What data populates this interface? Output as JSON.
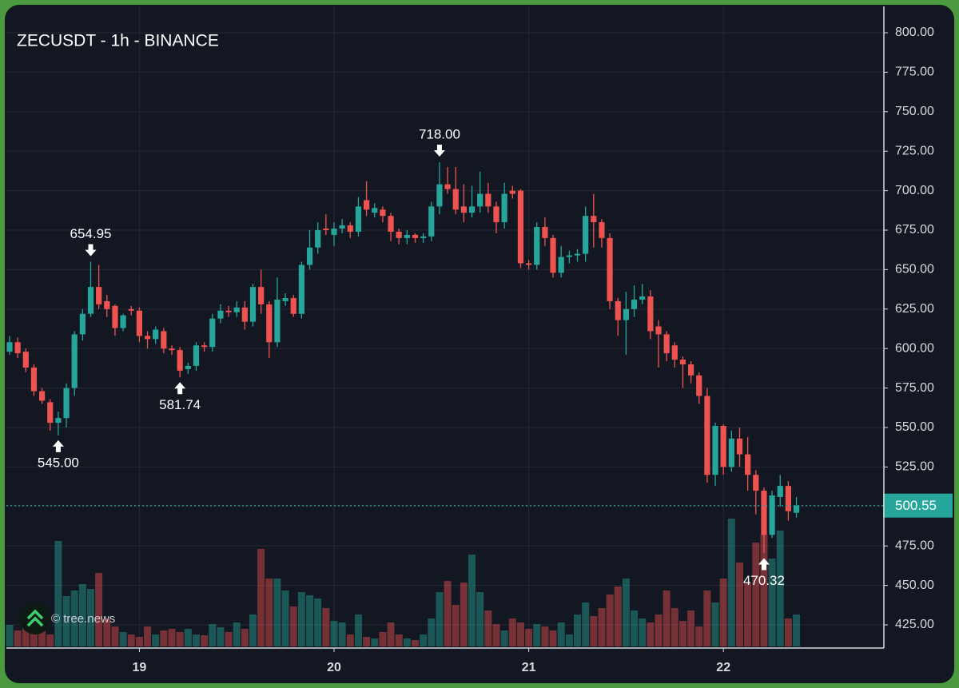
{
  "chart_data": {
    "type": "candlestick",
    "title": "ZECUSDT - 1h - BINANCE",
    "watermark": "© tree.news",
    "up_color": "#26a69a",
    "down_color": "#ef5350",
    "grid": true,
    "ylim": [
      425,
      800
    ],
    "yticks": [
      {
        "value": 425,
        "label": "425.00"
      },
      {
        "value": 450,
        "label": "450.00"
      },
      {
        "value": 475,
        "label": "475.00"
      },
      {
        "value": 500,
        "label": "500.00"
      },
      {
        "value": 525,
        "label": "525.00"
      },
      {
        "value": 550,
        "label": "550.00"
      },
      {
        "value": 575,
        "label": "575.00"
      },
      {
        "value": 600,
        "label": "600.00"
      },
      {
        "value": 625,
        "label": "625.00"
      },
      {
        "value": 650,
        "label": "650.00"
      },
      {
        "value": 675,
        "label": "675.00"
      },
      {
        "value": 700,
        "label": "700.00"
      },
      {
        "value": 725,
        "label": "725.00"
      },
      {
        "value": 750,
        "label": "750.00"
      },
      {
        "value": 775,
        "label": "775.00"
      },
      {
        "value": 800,
        "label": "800.00"
      }
    ],
    "xticks": [
      {
        "value": 16,
        "label": "19"
      },
      {
        "value": 40,
        "label": "20"
      },
      {
        "value": 64,
        "label": "21"
      },
      {
        "value": 88,
        "label": "22"
      }
    ],
    "last_price_label": "500.55",
    "annotations": [
      {
        "index": 10,
        "side": "high",
        "label": "654.95"
      },
      {
        "index": 6,
        "side": "low",
        "label": "545.00"
      },
      {
        "index": 21,
        "side": "low",
        "label": "581.74"
      },
      {
        "index": 53,
        "side": "high",
        "label": "718.00"
      },
      {
        "index": 93,
        "side": "low",
        "label": "470.32"
      }
    ],
    "open": [
      598,
      604,
      598,
      588,
      573,
      566,
      553,
      556,
      575,
      609,
      622,
      639,
      630,
      627,
      613,
      625,
      624,
      608,
      606,
      611,
      600,
      599,
      587,
      589,
      602,
      601,
      619,
      624,
      623,
      626,
      617,
      639,
      628,
      604,
      630,
      632,
      622,
      653,
      664,
      676,
      672,
      676,
      678,
      674,
      694,
      686,
      688,
      684,
      674,
      670,
      672,
      670,
      671,
      690,
      704,
      701,
      690,
      686,
      690,
      698,
      690,
      680,
      700,
      700,
      654,
      653,
      677,
      670,
      648,
      658,
      659,
      660,
      684,
      680,
      670,
      630,
      618,
      625,
      631,
      633,
      614,
      609,
      602,
      593,
      590,
      583,
      570,
      520,
      551,
      525,
      543,
      533,
      520,
      510,
      482,
      506,
      513,
      496
    ],
    "high": [
      608,
      607,
      600,
      590,
      575,
      568,
      560,
      578,
      611,
      625,
      654.95,
      653,
      634,
      628,
      622,
      627,
      626,
      611,
      614,
      613,
      602,
      601,
      591,
      604,
      604,
      622,
      628,
      627,
      630,
      630,
      641,
      650,
      630,
      645,
      635,
      634,
      655,
      675,
      680,
      685,
      680,
      682,
      680,
      696,
      706,
      692,
      690,
      686,
      676,
      675,
      673,
      673,
      693,
      718,
      715,
      715,
      704,
      703,
      712,
      705,
      693,
      705,
      703,
      701,
      656,
      680,
      683,
      672,
      665,
      662,
      663,
      690,
      698,
      682,
      673,
      632,
      636,
      640,
      641,
      637,
      618,
      611,
      604,
      595,
      592,
      585,
      575,
      553,
      552,
      548,
      550,
      544,
      523,
      512,
      510,
      520,
      516,
      506
    ],
    "low": [
      596,
      594,
      585,
      570,
      565,
      548,
      545,
      550,
      570,
      605,
      620,
      625,
      620,
      608,
      611,
      621,
      604,
      600,
      603,
      597,
      596,
      581.74,
      584,
      586,
      598,
      598,
      616,
      620,
      620,
      612,
      614,
      622,
      594,
      601,
      627,
      620,
      619,
      650,
      660,
      672,
      665,
      673,
      670,
      671,
      684,
      683,
      680,
      668,
      666,
      666,
      667,
      667,
      668,
      685,
      698,
      685,
      680,
      683,
      686,
      686,
      673,
      676,
      695,
      651,
      650,
      650,
      665,
      645,
      645,
      654,
      655,
      655,
      664,
      664,
      625,
      608,
      596,
      620,
      628,
      606,
      588,
      592,
      588,
      575,
      578,
      565,
      515,
      513,
      520,
      522,
      525,
      510,
      495,
      470.32,
      480,
      500,
      491,
      493
    ],
    "close": [
      604,
      597,
      588,
      573,
      567,
      553,
      556,
      575,
      609,
      622,
      639,
      628,
      625,
      613,
      621,
      624,
      608,
      606,
      612,
      600,
      599,
      586,
      589,
      602,
      601,
      619,
      624,
      623,
      626,
      617,
      639,
      628,
      604,
      631,
      632,
      622,
      653,
      664,
      675,
      675,
      676,
      678,
      674,
      690,
      688,
      689,
      684,
      674,
      670,
      672,
      670,
      671,
      690,
      704,
      701,
      688,
      686,
      690,
      698,
      690,
      680,
      698,
      698,
      654,
      653,
      677,
      670,
      648,
      658,
      659,
      660,
      684,
      680,
      670,
      630,
      618,
      625,
      631,
      633,
      611,
      609,
      597,
      593,
      590,
      583,
      570,
      520,
      551,
      525,
      543,
      533,
      520,
      510,
      482,
      507,
      513,
      497,
      500.55
    ],
    "volume": [
      27,
      20,
      28,
      30,
      22,
      15,
      132,
      63,
      70,
      78,
      72,
      92,
      35,
      25,
      18,
      15,
      12,
      25,
      15,
      20,
      22,
      18,
      22,
      15,
      14,
      28,
      24,
      18,
      30,
      22,
      40,
      122,
      85,
      85,
      70,
      50,
      68,
      64,
      60,
      48,
      32,
      30,
      15,
      40,
      12,
      10,
      18,
      30,
      15,
      10,
      8,
      15,
      35,
      68,
      82,
      52,
      80,
      115,
      68,
      45,
      28,
      20,
      35,
      30,
      22,
      28,
      25,
      20,
      30,
      15,
      40,
      55,
      38,
      48,
      65,
      75,
      85,
      45,
      35,
      30,
      40,
      70,
      48,
      32,
      45,
      25,
      70,
      55,
      85,
      160,
      105,
      80,
      130,
      140,
      110,
      145,
      35,
      40
    ]
  }
}
